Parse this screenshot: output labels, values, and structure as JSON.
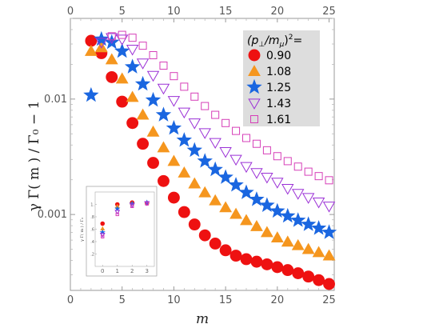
{
  "chart_data": {
    "type": "scatter",
    "title": "",
    "xlabel": "m",
    "ylabel": "γ Γ( m ) / Γ₀ − 1",
    "xlim": [
      0,
      25.5
    ],
    "ylim": [
      0.00022,
      0.05
    ],
    "yscale": "log",
    "x_ticks": [
      0,
      5,
      10,
      15,
      20,
      25
    ],
    "y_ticks": [
      0.001,
      0.01
    ],
    "y_tick_labels": [
      "0.001",
      "0.01"
    ],
    "x_tick_labels": [
      "0",
      "5",
      "10",
      "15",
      "20",
      "25"
    ],
    "legend": {
      "title_base": "(p",
      "title_sub1": "⊥",
      "title_mid": "/m",
      "title_sub2": "μ",
      "title_end": ")",
      "title_sup": "2",
      "title_eq": "=",
      "position": "top-right"
    },
    "series": [
      {
        "name": "0.90",
        "marker": "circle",
        "color": "#ee1111",
        "x": [
          2,
          3,
          4,
          5,
          6,
          7,
          8,
          9,
          10,
          11,
          12,
          13,
          14,
          15,
          16,
          17,
          18,
          19,
          20,
          21,
          22,
          23,
          24,
          25
        ],
        "y": [
          0.032,
          0.025,
          0.0155,
          0.0095,
          0.0062,
          0.0041,
          0.0028,
          0.00195,
          0.0014,
          0.00105,
          0.00082,
          0.00066,
          0.00056,
          0.00049,
          0.00044,
          0.00041,
          0.00039,
          0.00037,
          0.00035,
          0.00033,
          0.00031,
          0.00029,
          0.00027,
          0.00025
        ]
      },
      {
        "name": "1.08",
        "marker": "triangle",
        "color": "#f5961e",
        "x": [
          2,
          3,
          4,
          5,
          6,
          7,
          8,
          9,
          10,
          11,
          12,
          13,
          14,
          15,
          16,
          17,
          18,
          19,
          20,
          21,
          22,
          23,
          24,
          25
        ],
        "y": [
          0.026,
          0.028,
          0.022,
          0.015,
          0.0104,
          0.0073,
          0.0052,
          0.0038,
          0.0029,
          0.0023,
          0.00185,
          0.00155,
          0.00132,
          0.00115,
          0.00101,
          0.00089,
          0.00079,
          0.0007,
          0.00063,
          0.00058,
          0.00054,
          0.0005,
          0.00047,
          0.00044
        ]
      },
      {
        "name": "1.25",
        "marker": "star",
        "color": "#1a66e0",
        "x": [
          2,
          3,
          4,
          5,
          6,
          7,
          8,
          9,
          10,
          11,
          12,
          13,
          14,
          15,
          16,
          17,
          18,
          19,
          20,
          21,
          22,
          23,
          24,
          25
        ],
        "y": [
          0.0108,
          0.033,
          0.031,
          0.026,
          0.019,
          0.0135,
          0.0098,
          0.0073,
          0.0056,
          0.0044,
          0.0036,
          0.0029,
          0.00245,
          0.0021,
          0.0018,
          0.00155,
          0.00135,
          0.0012,
          0.00107,
          0.00097,
          0.00089,
          0.00082,
          0.00076,
          0.0007
        ]
      },
      {
        "name": "1.43",
        "marker": "triangle-down-open",
        "color": "#9b30d6",
        "x": [
          3,
          4,
          5,
          6,
          7,
          8,
          9,
          10,
          11,
          12,
          13,
          14,
          15,
          16,
          17,
          18,
          19,
          20,
          21,
          22,
          23,
          24,
          25
        ],
        "y": [
          0.031,
          0.034,
          0.033,
          0.027,
          0.0205,
          0.016,
          0.0124,
          0.0097,
          0.0077,
          0.0062,
          0.0051,
          0.0042,
          0.0035,
          0.003,
          0.0026,
          0.0023,
          0.0021,
          0.0019,
          0.00168,
          0.00152,
          0.0014,
          0.00128,
          0.00118
        ]
      },
      {
        "name": "1.61",
        "marker": "square-open",
        "color": "#d63fb8",
        "x": [
          4,
          5,
          6,
          7,
          8,
          9,
          10,
          11,
          12,
          13,
          14,
          15,
          16,
          17,
          18,
          19,
          20,
          21,
          22,
          23,
          24,
          25
        ],
        "y": [
          0.035,
          0.036,
          0.034,
          0.029,
          0.024,
          0.0195,
          0.0158,
          0.0128,
          0.0105,
          0.0087,
          0.0073,
          0.0062,
          0.0053,
          0.0046,
          0.0041,
          0.0036,
          0.0032,
          0.0029,
          0.0026,
          0.00235,
          0.00215,
          0.00198
        ]
      }
    ],
    "inset": {
      "xlabel": "",
      "ylabel": "γ Γ( m ) / Γ₀",
      "xlim": [
        -0.5,
        3.5
      ],
      "ylim": [
        0,
        1.2
      ],
      "x_ticks": [
        0,
        1,
        2,
        3
      ],
      "y_ticks": [
        0.2,
        0.4,
        0.6,
        0.8,
        1.0
      ],
      "y_tick_labels": [
        ".2",
        ".4",
        ".6",
        ".8",
        "1."
      ],
      "x_tick_labels": [
        "0",
        "1",
        "2",
        "3"
      ],
      "series": [
        {
          "name": "0.90",
          "x": [
            0,
            1,
            2,
            3
          ],
          "y": [
            0.69,
            1.0,
            1.03,
            1.02
          ]
        },
        {
          "name": "1.08",
          "x": [
            0,
            1,
            2,
            3
          ],
          "y": [
            0.61,
            0.97,
            1.02,
            1.03
          ]
        },
        {
          "name": "1.25",
          "x": [
            0,
            1,
            2,
            3
          ],
          "y": [
            0.55,
            0.93,
            1.01,
            1.03
          ]
        },
        {
          "name": "1.43",
          "x": [
            0,
            1,
            2,
            3
          ],
          "y": [
            0.51,
            0.88,
            0.99,
            1.02
          ]
        },
        {
          "name": "1.61",
          "x": [
            0,
            1,
            2,
            3
          ],
          "y": [
            0.48,
            0.84,
            0.97,
            1.01
          ]
        }
      ]
    }
  }
}
